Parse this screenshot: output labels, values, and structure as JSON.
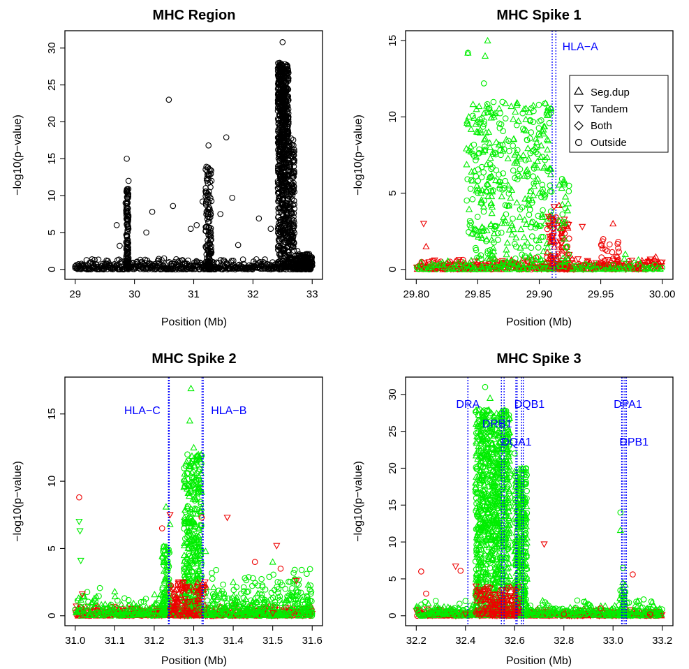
{
  "chart_data": [
    {
      "type": "scatter",
      "title": "MHC Region",
      "xlabel": "Position (Mb)",
      "ylabel": "−log10(p−value)",
      "xlim": [
        29,
        33
      ],
      "ylim": [
        0,
        31
      ],
      "xticks": [
        "29",
        "30",
        "31",
        "32",
        "33"
      ],
      "yticks": [
        "0",
        "5",
        "10",
        "15",
        "20",
        "25",
        "30"
      ],
      "color": "#000000",
      "gene_lines": [],
      "series": [
        {
          "values": [
            [
              29.0,
              0.2
            ],
            [
              29.1,
              0.5
            ],
            [
              29.3,
              0.8
            ],
            [
              29.5,
              0.4
            ],
            [
              29.7,
              6.0
            ],
            [
              29.75,
              3.2
            ],
            [
              29.85,
              9.0
            ],
            [
              29.87,
              15.0
            ],
            [
              29.9,
              12.0
            ],
            [
              30.1,
              1.3
            ],
            [
              30.2,
              5.0
            ],
            [
              30.3,
              7.8
            ],
            [
              30.5,
              1.5
            ],
            [
              30.58,
              23.0
            ],
            [
              30.65,
              8.6
            ],
            [
              30.8,
              1.2
            ],
            [
              30.95,
              5.5
            ],
            [
              31.05,
              6.0
            ],
            [
              31.15,
              9.2
            ],
            [
              31.25,
              16.8
            ],
            [
              31.3,
              12.0
            ],
            [
              31.45,
              7.5
            ],
            [
              31.55,
              17.9
            ],
            [
              31.65,
              9.7
            ],
            [
              31.75,
              3.3
            ],
            [
              32.1,
              6.9
            ],
            [
              32.3,
              5.5
            ],
            [
              32.45,
              28.0
            ],
            [
              32.5,
              30.8
            ],
            [
              32.55,
              25.0
            ],
            [
              32.6,
              20.0
            ],
            [
              32.65,
              13.0
            ],
            [
              32.75,
              2.5
            ],
            [
              32.9,
              1.5
            ],
            [
              33.0,
              0.5
            ]
          ]
        }
      ]
    },
    {
      "type": "scatter",
      "title": "MHC Spike 1",
      "xlabel": "Position (Mb)",
      "ylabel": "−log10(p−value)",
      "xlim": [
        29.8,
        30.0
      ],
      "ylim": [
        0,
        15
      ],
      "xticks": [
        "29.80",
        "29.85",
        "29.90",
        "29.95",
        "30.00"
      ],
      "yticks": [
        "0",
        "5",
        "10",
        "15"
      ],
      "gene_lines": [
        {
          "label": "HLA−A",
          "x": [
            29.9105,
            29.9135
          ]
        }
      ],
      "legend": [
        "Seg.dup",
        "Tandem",
        "Both",
        "Outside"
      ],
      "series": [
        {
          "values": [
            [
              29.842,
              14.2
            ],
            [
              29.858,
              15.0
            ],
            [
              29.856,
              14.0
            ],
            [
              29.855,
              12.2
            ],
            [
              29.85,
              9.0
            ],
            [
              29.86,
              8.0
            ],
            [
              29.865,
              6.5
            ],
            [
              29.875,
              5.5
            ],
            [
              29.88,
              7.0
            ],
            [
              29.89,
              8.5
            ],
            [
              29.905,
              10.9
            ],
            [
              29.9,
              5.0
            ],
            [
              29.91,
              5.1
            ],
            [
              29.92,
              3.0
            ],
            [
              29.97,
              1.0
            ],
            [
              29.96,
              0.3
            ]
          ]
        },
        {
          "values": [
            [
              29.806,
              3.0
            ],
            [
              29.808,
              1.5
            ],
            [
              29.912,
              4.1
            ],
            [
              29.916,
              4.2
            ],
            [
              29.935,
              2.8
            ],
            [
              29.96,
              3.0
            ],
            [
              29.85,
              0.3
            ],
            [
              29.925,
              0.2
            ],
            [
              29.95,
              0.2
            ],
            [
              29.98,
              0.3
            ]
          ]
        }
      ]
    },
    {
      "type": "scatter",
      "title": "MHC Spike 2",
      "xlabel": "Position (Mb)",
      "ylabel": "−log10(p−value)",
      "xlim": [
        31.0,
        31.6
      ],
      "ylim": [
        0,
        17
      ],
      "xticks": [
        "31.0",
        "31.1",
        "31.2",
        "31.3",
        "31.4",
        "31.5",
        "31.6"
      ],
      "yticks": [
        "0",
        "5",
        "10",
        "15"
      ],
      "gene_lines": [
        {
          "label": "HLA−C",
          "x": [
            31.236,
            31.238
          ]
        },
        {
          "label": "HLA−B",
          "x": [
            31.321,
            31.324
          ]
        }
      ],
      "series": [
        {
          "values": [
            [
              31.01,
              7.0
            ],
            [
              31.012,
              6.3
            ],
            [
              31.014,
              4.1
            ],
            [
              31.1,
              1.8
            ],
            [
              31.23,
              8.1
            ],
            [
              31.24,
              6.8
            ],
            [
              31.293,
              16.9
            ],
            [
              31.29,
              14.5
            ],
            [
              31.3,
              12.5
            ],
            [
              31.33,
              4.8
            ],
            [
              31.4,
              2.5
            ],
            [
              31.5,
              4.0
            ],
            [
              31.59,
              2.3
            ]
          ]
        },
        {
          "values": [
            [
              31.01,
              8.8
            ],
            [
              31.018,
              1.6
            ],
            [
              31.22,
              6.5
            ],
            [
              31.24,
              7.5
            ],
            [
              31.32,
              7.3
            ],
            [
              31.385,
              7.3
            ],
            [
              31.455,
              4.0
            ],
            [
              31.51,
              5.2
            ],
            [
              31.52,
              3.5
            ],
            [
              31.56,
              2.6
            ],
            [
              31.3,
              0.2
            ],
            [
              31.5,
              0.2
            ]
          ]
        }
      ]
    },
    {
      "type": "scatter",
      "title": "MHC Spike 3",
      "xlabel": "Position (Mb)",
      "ylabel": "−log10(p−value)",
      "xlim": [
        32.2,
        33.2
      ],
      "ylim": [
        0,
        31
      ],
      "xticks": [
        "32.2",
        "32.4",
        "32.6",
        "32.8",
        "33.0",
        "33.2"
      ],
      "yticks": [
        "0",
        "5",
        "10",
        "15",
        "20",
        "25",
        "30"
      ],
      "gene_lines": [
        {
          "label": "DRA",
          "x": [
            32.41,
            32.41
          ]
        },
        {
          "label": "DRB1",
          "x": [
            32.546,
            32.557
          ]
        },
        {
          "label": "DQA1",
          "x": [
            32.605,
            32.61
          ]
        },
        {
          "label": "DQB1",
          "x": [
            32.628,
            32.635
          ]
        },
        {
          "label": "DPA1",
          "x": [
            33.035,
            33.04
          ]
        },
        {
          "label": "DPB1",
          "x": [
            33.048,
            33.054
          ]
        }
      ],
      "series": [
        {
          "values": [
            [
              32.48,
              31.0
            ],
            [
              32.5,
              29.5
            ],
            [
              32.55,
              27.0
            ],
            [
              32.45,
              25.0
            ],
            [
              32.6,
              22.0
            ],
            [
              32.63,
              20.0
            ],
            [
              32.46,
              18.0
            ],
            [
              32.62,
              15.0
            ],
            [
              32.6,
              10.0
            ],
            [
              32.65,
              5.0
            ],
            [
              33.03,
              14.0
            ],
            [
              33.03,
              11.6
            ],
            [
              33.04,
              6.5
            ],
            [
              33.1,
              2.0
            ],
            [
              32.4,
              2.0
            ]
          ]
        },
        {
          "values": [
            [
              32.22,
              6.0
            ],
            [
              32.24,
              3.0
            ],
            [
              32.36,
              6.7
            ],
            [
              32.38,
              6.1
            ],
            [
              32.5,
              2.5
            ],
            [
              32.72,
              9.7
            ],
            [
              33.08,
              5.6
            ],
            [
              32.95,
              1.0
            ],
            [
              32.4,
              0.2
            ],
            [
              32.8,
              0.2
            ],
            [
              33.15,
              0.2
            ]
          ]
        }
      ]
    }
  ]
}
